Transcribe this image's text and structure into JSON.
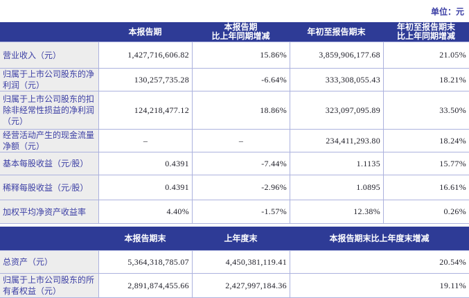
{
  "unit_label": "单位：元",
  "colors": {
    "header_bg": "#2e3b96",
    "header_text": "#ffffff",
    "label_text": "#3b3ea4",
    "value_text": "#20202a",
    "label_bg": "#ededed",
    "border": "#acb2de",
    "page_bg": "#ffffff"
  },
  "section1": {
    "headers": {
      "current": "本报告期",
      "yoy_line1": "本报告期",
      "yoy_line2": "比上年同期增减",
      "ytd": "年初至报告期末",
      "ytd_yoy_line1": "年初至报告期末",
      "ytd_yoy_line2": "比上年同期增减"
    },
    "rows": [
      {
        "label": "营业收入（元）",
        "current": "1,427,716,606.82",
        "yoy": "15.86%",
        "ytd": "3,859,906,177.68",
        "ytd_yoy": "21.05%"
      },
      {
        "label": "归属于上市公司股东的净利润（元）",
        "current": "130,257,735.28",
        "yoy": "-6.64%",
        "ytd": "333,308,055.43",
        "ytd_yoy": "18.21%"
      },
      {
        "label": "归属于上市公司股东的扣除非经常性损益的净利润（元）",
        "current": "124,218,477.12",
        "yoy": "18.86%",
        "ytd": "323,097,095.89",
        "ytd_yoy": "33.50%"
      },
      {
        "label": "经营活动产生的现金流量净额（元）",
        "current": "–",
        "yoy": "–",
        "ytd": "234,411,293.80",
        "ytd_yoy": "18.24%"
      },
      {
        "label": "基本每股收益（元/股）",
        "current": "0.4391",
        "yoy": "-7.44%",
        "ytd": "1.1135",
        "ytd_yoy": "15.77%"
      },
      {
        "label": "稀释每股收益（元/股）",
        "current": "0.4391",
        "yoy": "-2.96%",
        "ytd": "1.0895",
        "ytd_yoy": "16.61%"
      },
      {
        "label": "加权平均净资产收益率",
        "current": "4.40%",
        "yoy": "-1.57%",
        "ytd": "12.38%",
        "ytd_yoy": "0.26%"
      }
    ]
  },
  "section2": {
    "headers": {
      "end": "本报告期末",
      "prev_end": "上年度末",
      "change": "本报告期末比上年度末增减"
    },
    "rows": [
      {
        "label": "总资产（元）",
        "end": "5,364,318,785.07",
        "prev_end": "4,450,381,119.41",
        "change": "20.54%"
      },
      {
        "label": "归属于上市公司股东的所有者权益（元）",
        "end": "2,891,874,455.66",
        "prev_end": "2,427,997,184.36",
        "change": "19.11%"
      }
    ]
  }
}
